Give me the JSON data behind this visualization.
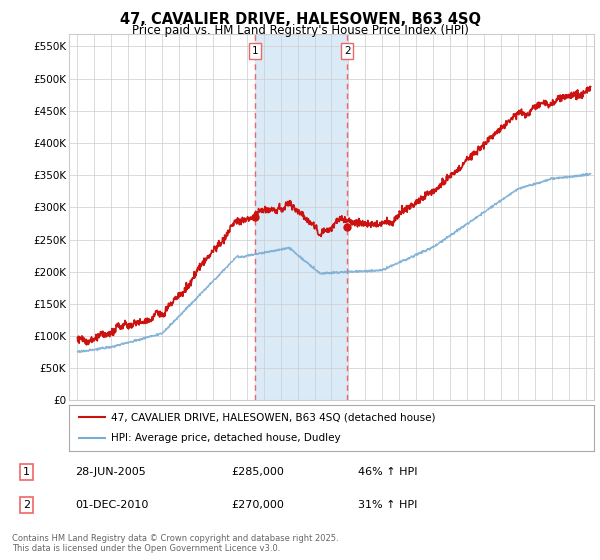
{
  "title": "47, CAVALIER DRIVE, HALESOWEN, B63 4SQ",
  "subtitle": "Price paid vs. HM Land Registry's House Price Index (HPI)",
  "ytick_labels": [
    "£0",
    "£50K",
    "£100K",
    "£150K",
    "£200K",
    "£250K",
    "£300K",
    "£350K",
    "£400K",
    "£450K",
    "£500K",
    "£550K"
  ],
  "yticks": [
    0,
    50000,
    100000,
    150000,
    200000,
    250000,
    300000,
    350000,
    400000,
    450000,
    500000,
    550000
  ],
  "hpi_color": "#7aadd4",
  "price_color": "#cc1111",
  "vline_color": "#ee6666",
  "highlight_color": "#daeaf7",
  "purchase1_x": 2005.49,
  "purchase1_y": 285000,
  "purchase2_x": 2010.92,
  "purchase2_y": 270000,
  "legend_line1": "47, CAVALIER DRIVE, HALESOWEN, B63 4SQ (detached house)",
  "legend_line2": "HPI: Average price, detached house, Dudley",
  "purchase1_label": "1",
  "purchase1_date": "28-JUN-2005",
  "purchase1_price": "£285,000",
  "purchase1_hpi": "46% ↑ HPI",
  "purchase2_label": "2",
  "purchase2_date": "01-DEC-2010",
  "purchase2_price": "£270,000",
  "purchase2_hpi": "31% ↑ HPI",
  "footer": "Contains HM Land Registry data © Crown copyright and database right 2025.\nThis data is licensed under the Open Government Licence v3.0.",
  "xlim": [
    1994.5,
    2025.5
  ],
  "ylim": [
    0,
    570000
  ],
  "xticks": [
    1995,
    1996,
    1997,
    1998,
    1999,
    2000,
    2001,
    2002,
    2003,
    2004,
    2005,
    2006,
    2007,
    2008,
    2009,
    2010,
    2011,
    2012,
    2013,
    2014,
    2015,
    2016,
    2017,
    2018,
    2019,
    2020,
    2021,
    2022,
    2023,
    2024,
    2025
  ],
  "background_color": "#ffffff",
  "grid_color": "#cccccc"
}
